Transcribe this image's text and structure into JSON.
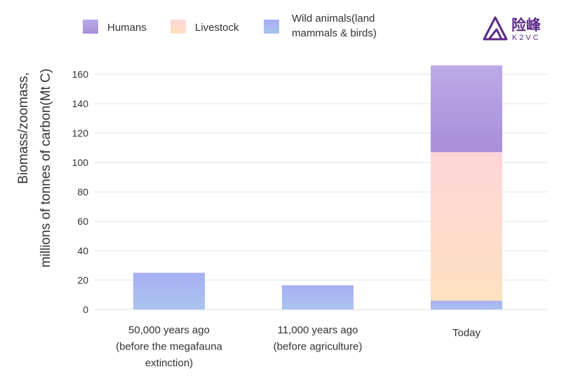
{
  "logo": {
    "name_cn": "险峰",
    "name_en": "K2VC",
    "color": "#5b2a86"
  },
  "chart_data": {
    "type": "bar",
    "stacked": true,
    "categories": [
      [
        "50,000 years ago",
        "(before the megafauna",
        "extinction)"
      ],
      [
        "11,000 years ago",
        "(before agriculture)"
      ],
      [
        "Today"
      ]
    ],
    "series": [
      {
        "name": "Wild animals(land mammals & birds)",
        "legend_lines": [
          "Wild animals(land",
          "mammals & birds)"
        ],
        "values": [
          25,
          16.5,
          6
        ],
        "color": "#a6b4f2"
      },
      {
        "name": "Livestock",
        "legend_lines": [
          "Livestock"
        ],
        "values": [
          0,
          0,
          101
        ],
        "color": "#fdd8c6"
      },
      {
        "name": "Humans",
        "legend_lines": [
          "Humans"
        ],
        "values": [
          0,
          0,
          59
        ],
        "color": "#b09ae2"
      }
    ],
    "ylabel_lines": [
      "Biomass/zoomass,",
      "millions of tonnes of carbon(Mt C)"
    ],
    "ylim": [
      0,
      170
    ],
    "yticks": [
      0,
      20,
      40,
      60,
      80,
      100,
      120,
      140,
      160
    ],
    "grid": true,
    "legend_position": "top-left"
  }
}
